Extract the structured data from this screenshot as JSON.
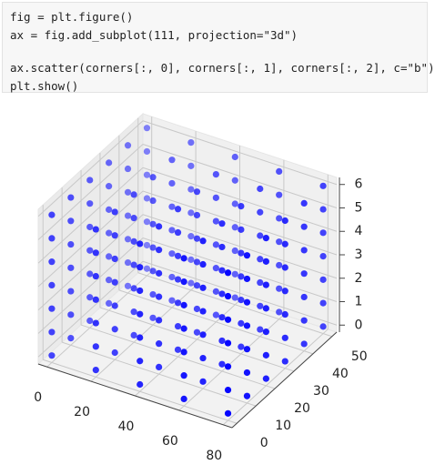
{
  "code": {
    "lines": [
      "fig = plt.figure()",
      "ax = fig.add_subplot(111, projection=\"3d\")",
      "ax.scatter(corners[:, 0], corners[:, 1], corners[:, 2], c=\"b\")",
      "plt.show()"
    ]
  },
  "chart_data": {
    "type": "scatter3d",
    "color": "#0000ff",
    "x": [
      0,
      20,
      40,
      60,
      80,
      0,
      20,
      40,
      60,
      80,
      0,
      20,
      40,
      60,
      80,
      0,
      20,
      40,
      60,
      80,
      0,
      20,
      40,
      60,
      80,
      0,
      20,
      40,
      60,
      80,
      0,
      20,
      40,
      60,
      80,
      0,
      20,
      40,
      60,
      80,
      0,
      20,
      40,
      60,
      80,
      0,
      20,
      40,
      60,
      80,
      0,
      20,
      40,
      60,
      80,
      0,
      20,
      40,
      60,
      80,
      0,
      20,
      40,
      60,
      80,
      0,
      20,
      40,
      60,
      80,
      0,
      20,
      40,
      60,
      80,
      0,
      20,
      40,
      60,
      80,
      0,
      20,
      40,
      60,
      80,
      0,
      20,
      40,
      60,
      80,
      0,
      20,
      40,
      60,
      80,
      0,
      20,
      40,
      60,
      80,
      0,
      20,
      40,
      60,
      80,
      0,
      20,
      40,
      60,
      80,
      0,
      20,
      40,
      60,
      80,
      0,
      20,
      40,
      60,
      80,
      0,
      20,
      40,
      60,
      80,
      0,
      20,
      40,
      60,
      80,
      0,
      20,
      40,
      60,
      80,
      0,
      20,
      40,
      60,
      80,
      0,
      20,
      40,
      60,
      80,
      0,
      20,
      40,
      60,
      80,
      0,
      20,
      40,
      60,
      80,
      0,
      20,
      40,
      60,
      80,
      0,
      20,
      40,
      60,
      80,
      0,
      20,
      40,
      60,
      80,
      0,
      20,
      40,
      60,
      80,
      0,
      20,
      40,
      60,
      80,
      0,
      20,
      40,
      60,
      80,
      0,
      20,
      40,
      60,
      80,
      0,
      20,
      40,
      60,
      80,
      0,
      20,
      40,
      60,
      80,
      0,
      20,
      40,
      60,
      80,
      0,
      20,
      40,
      60,
      80
    ],
    "y": [
      0,
      0,
      0,
      0,
      0,
      10,
      10,
      10,
      10,
      10,
      20,
      20,
      20,
      20,
      20,
      30,
      30,
      30,
      30,
      30,
      40,
      40,
      40,
      40,
      40,
      50,
      50,
      50,
      50,
      50,
      0,
      0,
      0,
      0,
      0,
      10,
      10,
      10,
      10,
      10,
      20,
      20,
      20,
      20,
      20,
      30,
      30,
      30,
      30,
      30,
      40,
      40,
      40,
      40,
      40,
      50,
      50,
      50,
      50,
      50,
      0,
      0,
      0,
      0,
      0,
      10,
      10,
      10,
      10,
      10,
      20,
      20,
      20,
      20,
      20,
      30,
      30,
      30,
      30,
      30,
      40,
      40,
      40,
      40,
      40,
      50,
      50,
      50,
      50,
      50,
      0,
      0,
      0,
      0,
      0,
      10,
      10,
      10,
      10,
      10,
      20,
      20,
      20,
      20,
      20,
      30,
      30,
      30,
      30,
      30,
      40,
      40,
      40,
      40,
      40,
      50,
      50,
      50,
      50,
      50,
      0,
      0,
      0,
      0,
      0,
      10,
      10,
      10,
      10,
      10,
      20,
      20,
      20,
      20,
      20,
      30,
      30,
      30,
      30,
      30,
      40,
      40,
      40,
      40,
      40,
      50,
      50,
      50,
      50,
      50,
      0,
      0,
      0,
      0,
      0,
      10,
      10,
      10,
      10,
      10,
      20,
      20,
      20,
      20,
      20,
      30,
      30,
      30,
      30,
      30,
      40,
      40,
      40,
      40,
      40,
      50,
      50,
      50,
      50,
      50,
      0,
      0,
      0,
      0,
      0,
      10,
      10,
      10,
      10,
      10,
      20,
      20,
      20,
      20,
      20,
      30,
      30,
      30,
      30,
      30,
      40,
      40,
      40,
      40,
      40,
      50,
      50,
      50,
      50,
      50
    ],
    "z": [
      0,
      0,
      0,
      0,
      0,
      0,
      0,
      0,
      0,
      0,
      0,
      0,
      0,
      0,
      0,
      0,
      0,
      0,
      0,
      0,
      0,
      0,
      0,
      0,
      0,
      0,
      0,
      0,
      0,
      0,
      1,
      1,
      1,
      1,
      1,
      1,
      1,
      1,
      1,
      1,
      1,
      1,
      1,
      1,
      1,
      1,
      1,
      1,
      1,
      1,
      1,
      1,
      1,
      1,
      1,
      1,
      1,
      1,
      1,
      1,
      2,
      2,
      2,
      2,
      2,
      2,
      2,
      2,
      2,
      2,
      2,
      2,
      2,
      2,
      2,
      2,
      2,
      2,
      2,
      2,
      2,
      2,
      2,
      2,
      2,
      2,
      2,
      2,
      2,
      2,
      3,
      3,
      3,
      3,
      3,
      3,
      3,
      3,
      3,
      3,
      3,
      3,
      3,
      3,
      3,
      3,
      3,
      3,
      3,
      3,
      3,
      3,
      3,
      3,
      3,
      3,
      3,
      3,
      3,
      3,
      4,
      4,
      4,
      4,
      4,
      4,
      4,
      4,
      4,
      4,
      4,
      4,
      4,
      4,
      4,
      4,
      4,
      4,
      4,
      4,
      4,
      4,
      4,
      4,
      4,
      4,
      4,
      4,
      4,
      4,
      5,
      5,
      5,
      5,
      5,
      5,
      5,
      5,
      5,
      5,
      5,
      5,
      5,
      5,
      5,
      5,
      5,
      5,
      5,
      5,
      5,
      5,
      5,
      5,
      5,
      5,
      5,
      5,
      5,
      5,
      6,
      6,
      6,
      6,
      6,
      6,
      6,
      6,
      6,
      6,
      6,
      6,
      6,
      6,
      6,
      6,
      6,
      6,
      6,
      6,
      6,
      6,
      6,
      6,
      6,
      6,
      6,
      6,
      6,
      6
    ],
    "xlim": [
      -4,
      84
    ],
    "ylim": [
      -2.5,
      52.5
    ],
    "zlim": [
      -0.3,
      6.3
    ],
    "xticks": [
      0,
      20,
      40,
      60,
      80
    ],
    "yticks": [
      0,
      10,
      20,
      30,
      40,
      50
    ],
    "zticks": [
      0,
      1,
      2,
      3,
      4,
      5,
      6
    ],
    "grid": true
  }
}
